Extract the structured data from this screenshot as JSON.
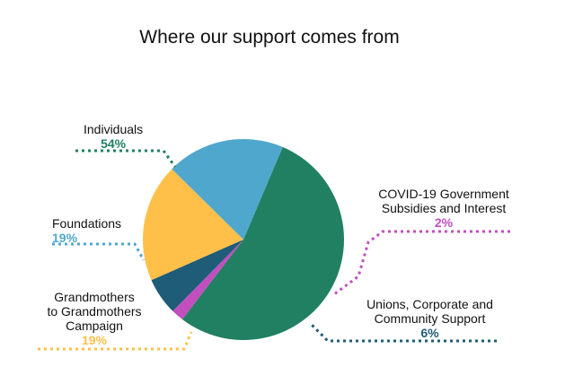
{
  "chart_data": {
    "type": "pie",
    "title": "Where our support comes from",
    "slices": [
      {
        "label": "Individuals",
        "pct_label": "54%",
        "value": 54,
        "color": "#218061"
      },
      {
        "label": "COVID-19 Government Subsidies and Interest",
        "pct_label": "2%",
        "value": 2,
        "color": "#c14fbe"
      },
      {
        "label": "Unions, Corporate and Community Support",
        "pct_label": "6%",
        "value": 6,
        "color": "#1f5c78"
      },
      {
        "label": "Grandmothers to Grandmothers Campaign",
        "pct_label": "19%",
        "value": 19,
        "color": "#ffc04a"
      },
      {
        "label": "Foundations",
        "pct_label": "19%",
        "value": 19,
        "color": "#50a7ce"
      }
    ],
    "legend": "none"
  },
  "labels": {
    "individuals": {
      "name": "Individuals",
      "pct": "54%"
    },
    "covid": {
      "name_line1": "COVID-19 Government",
      "name_line2": "Subsidies and Interest",
      "pct": "2%"
    },
    "unions": {
      "name_line1": "Unions, Corporate and",
      "name_line2": "Community Support",
      "pct": "6%"
    },
    "grandmothers": {
      "name_line1": "Grandmothers",
      "name_line2": "to Grandmothers",
      "name_line3": "Campaign",
      "pct": "19%"
    },
    "foundations": {
      "name": "Foundations",
      "pct": "19%"
    }
  }
}
